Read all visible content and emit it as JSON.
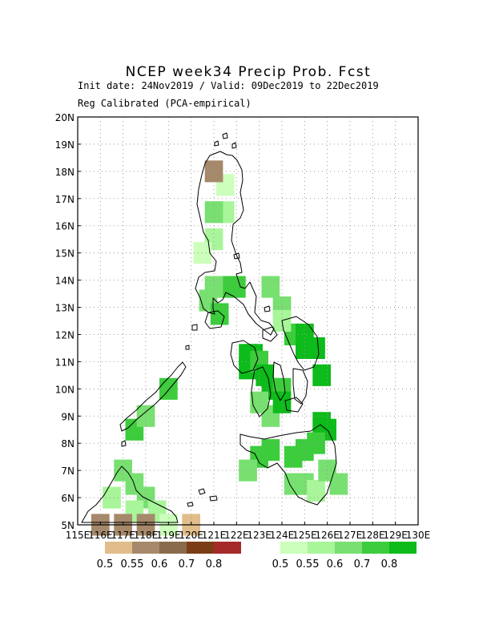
{
  "header": {
    "title": "NCEP week34 Precip Prob. Fcst",
    "init_line": "Init date: 24Nov2019 / Valid: 09Dec2019 to 22Dec2019",
    "method_line": "Reg Calibrated (PCA-empirical)"
  },
  "map": {
    "lon_range": [
      115,
      130
    ],
    "lat_range": [
      5,
      20
    ],
    "lat_labels": [
      "20N",
      "19N",
      "18N",
      "17N",
      "16N",
      "15N",
      "14N",
      "13N",
      "12N",
      "11N",
      "10N",
      "9N",
      "8N",
      "7N",
      "6N",
      "5N"
    ],
    "lon_labels": [
      "115E",
      "116E",
      "117E",
      "118E",
      "119E",
      "120E",
      "121E",
      "122E",
      "123E",
      "124E",
      "125E",
      "126E",
      "127E",
      "128E",
      "129E",
      "130E"
    ],
    "grid": true
  },
  "legend": {
    "below": {
      "colors": [
        "#e0bd8a",
        "#a5896a",
        "#8a6a4c",
        "#7a3d15",
        "#a52a2a"
      ],
      "labels": [
        "0.5",
        "0.55",
        "0.6",
        "0.7",
        "0.8"
      ]
    },
    "above": {
      "colors": [
        "#ccffbb",
        "#a8f59a",
        "#78e070",
        "#3ccc3c",
        "#0dbb1a"
      ],
      "labels": [
        "0.5",
        "0.55",
        "0.6",
        "0.7",
        "0.8"
      ]
    }
  },
  "cells": {
    "above": [
      [
        121.5,
        17.5,
        0
      ],
      [
        121.5,
        16.5,
        1
      ],
      [
        121.0,
        16.5,
        2
      ],
      [
        121.0,
        15.5,
        1
      ],
      [
        120.5,
        15.0,
        0
      ],
      [
        121.5,
        13.75,
        3
      ],
      [
        122.0,
        13.75,
        3
      ],
      [
        121.0,
        13.75,
        2
      ],
      [
        120.75,
        13.25,
        2
      ],
      [
        121.25,
        12.75,
        3
      ],
      [
        122.5,
        11.25,
        4
      ],
      [
        122.5,
        10.75,
        4
      ],
      [
        122.75,
        11.25,
        4
      ],
      [
        123.0,
        11.0,
        3
      ],
      [
        123.25,
        10.5,
        4
      ],
      [
        123.5,
        10.0,
        4
      ],
      [
        124.0,
        10.0,
        3
      ],
      [
        123.0,
        9.5,
        2
      ],
      [
        123.5,
        9.0,
        2
      ],
      [
        124.0,
        9.5,
        4
      ],
      [
        124.5,
        12.0,
        3
      ],
      [
        125.0,
        12.0,
        4
      ],
      [
        125.0,
        11.5,
        4
      ],
      [
        125.5,
        11.5,
        4
      ],
      [
        125.75,
        10.5,
        4
      ],
      [
        125.75,
        8.75,
        4
      ],
      [
        126.0,
        8.5,
        4
      ],
      [
        125.5,
        8.0,
        3
      ],
      [
        125.0,
        7.75,
        3
      ],
      [
        124.5,
        7.5,
        3
      ],
      [
        123.5,
        7.75,
        3
      ],
      [
        123.0,
        7.5,
        3
      ],
      [
        124.5,
        6.5,
        2
      ],
      [
        125.0,
        6.5,
        2
      ],
      [
        125.5,
        6.25,
        1
      ],
      [
        126.0,
        7.0,
        2
      ],
      [
        126.5,
        6.5,
        2
      ],
      [
        124.0,
        13.0,
        2
      ],
      [
        124.0,
        12.5,
        1
      ],
      [
        123.5,
        13.75,
        2
      ],
      [
        122.5,
        7.0,
        2
      ],
      [
        118.0,
        6.0,
        2
      ],
      [
        117.5,
        6.5,
        2
      ],
      [
        117.0,
        7.0,
        2
      ],
      [
        116.5,
        6.0,
        1
      ],
      [
        117.5,
        5.5,
        1
      ],
      [
        118.5,
        5.5,
        1
      ],
      [
        119.0,
        5.0,
        0
      ],
      [
        117.5,
        8.5,
        3
      ],
      [
        118.0,
        9.0,
        2
      ],
      [
        119.0,
        10.0,
        3
      ]
    ],
    "below": [
      [
        121.0,
        18.0,
        1
      ],
      [
        116.0,
        5.0,
        1
      ],
      [
        117.0,
        5.0,
        1
      ],
      [
        118.0,
        5.0,
        1
      ],
      [
        120.0,
        5.0,
        0
      ]
    ]
  }
}
